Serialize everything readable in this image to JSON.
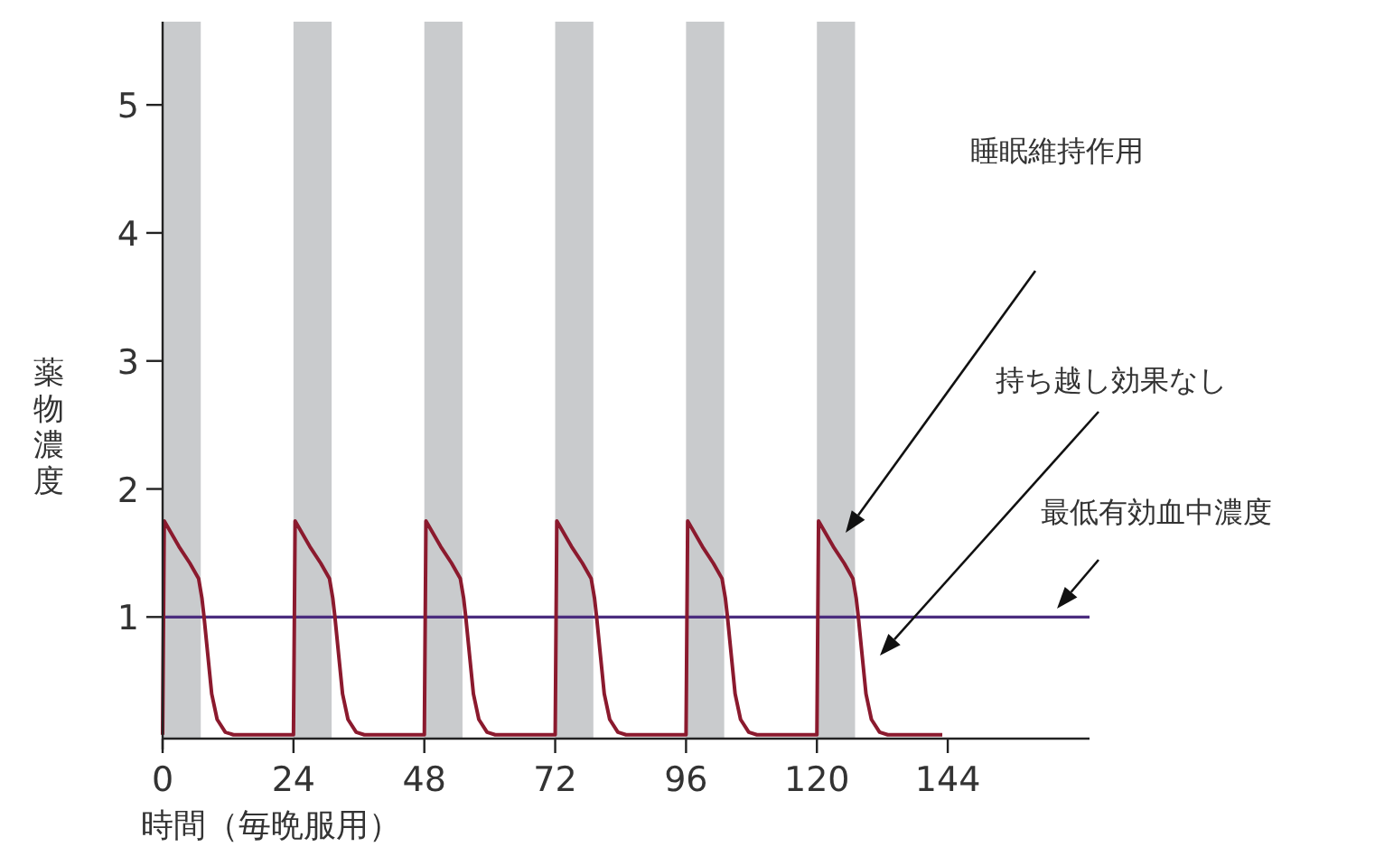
{
  "chart_data": {
    "type": "line",
    "xlabel": "時間（毎晩服用）",
    "ylabel": "薬物濃度",
    "x": [
      0,
      0.3,
      3,
      5,
      6.6,
      7.2,
      7.6,
      8.3,
      9,
      10,
      11.5,
      13,
      24,
      24.3,
      27,
      29,
      30.6,
      31.2,
      31.6,
      32.3,
      33,
      34,
      35.5,
      37,
      48,
      48.3,
      51,
      53,
      54.6,
      55.2,
      55.6,
      56.3,
      57,
      58,
      59.5,
      61,
      72,
      72.3,
      75,
      77,
      78.6,
      79.2,
      79.6,
      80.3,
      81,
      82,
      83.5,
      85,
      96,
      96.3,
      99,
      101,
      102.6,
      103.2,
      103.6,
      104.3,
      105,
      106,
      107.5,
      109,
      120,
      120.3,
      123,
      125,
      126.6,
      127.2,
      127.6,
      128.3,
      129,
      130,
      131.5,
      133,
      143
    ],
    "series": [
      {
        "color": "#8b1a2e",
        "values": [
          0.08,
          1.75,
          1.55,
          1.42,
          1.3,
          1.15,
          1.0,
          0.7,
          0.4,
          0.2,
          0.1,
          0.08,
          0.08,
          1.75,
          1.55,
          1.42,
          1.3,
          1.15,
          1.0,
          0.7,
          0.4,
          0.2,
          0.1,
          0.08,
          0.08,
          1.75,
          1.55,
          1.42,
          1.3,
          1.15,
          1.0,
          0.7,
          0.4,
          0.2,
          0.1,
          0.08,
          0.08,
          1.75,
          1.55,
          1.42,
          1.3,
          1.15,
          1.0,
          0.7,
          0.4,
          0.2,
          0.1,
          0.08,
          0.08,
          1.75,
          1.55,
          1.42,
          1.3,
          1.15,
          1.0,
          0.7,
          0.4,
          0.2,
          0.1,
          0.08,
          0.08,
          1.75,
          1.55,
          1.42,
          1.3,
          1.15,
          1.0,
          0.7,
          0.4,
          0.2,
          0.1,
          0.08,
          0.08
        ]
      }
    ],
    "xlim": [
      0,
      170
    ],
    "ylim": [
      0.05,
      5.65
    ],
    "xticks": [
      0,
      24,
      48,
      72,
      96,
      120,
      144
    ],
    "yticks": [
      1,
      2,
      3,
      4,
      5
    ],
    "grid": false,
    "marker": "none",
    "line_style": "solid",
    "ref_lines": [
      {
        "axis": "y",
        "value": 1,
        "color": "#4b2d7f"
      }
    ],
    "bands": [
      {
        "axis": "x",
        "from": 0,
        "to": 7,
        "color": "#c9cbcd"
      },
      {
        "axis": "x",
        "from": 24,
        "to": 31,
        "color": "#c9cbcd"
      },
      {
        "axis": "x",
        "from": 48,
        "to": 55,
        "color": "#c9cbcd"
      },
      {
        "axis": "x",
        "from": 72,
        "to": 79,
        "color": "#c9cbcd"
      },
      {
        "axis": "x",
        "from": 96,
        "to": 103,
        "color": "#c9cbcd"
      },
      {
        "axis": "x",
        "from": 120,
        "to": 127,
        "color": "#c9cbcd"
      }
    ],
    "annotations": [
      "睡眠維持作用",
      "持ち越し効果なし",
      "最低有効血中濃度"
    ]
  }
}
